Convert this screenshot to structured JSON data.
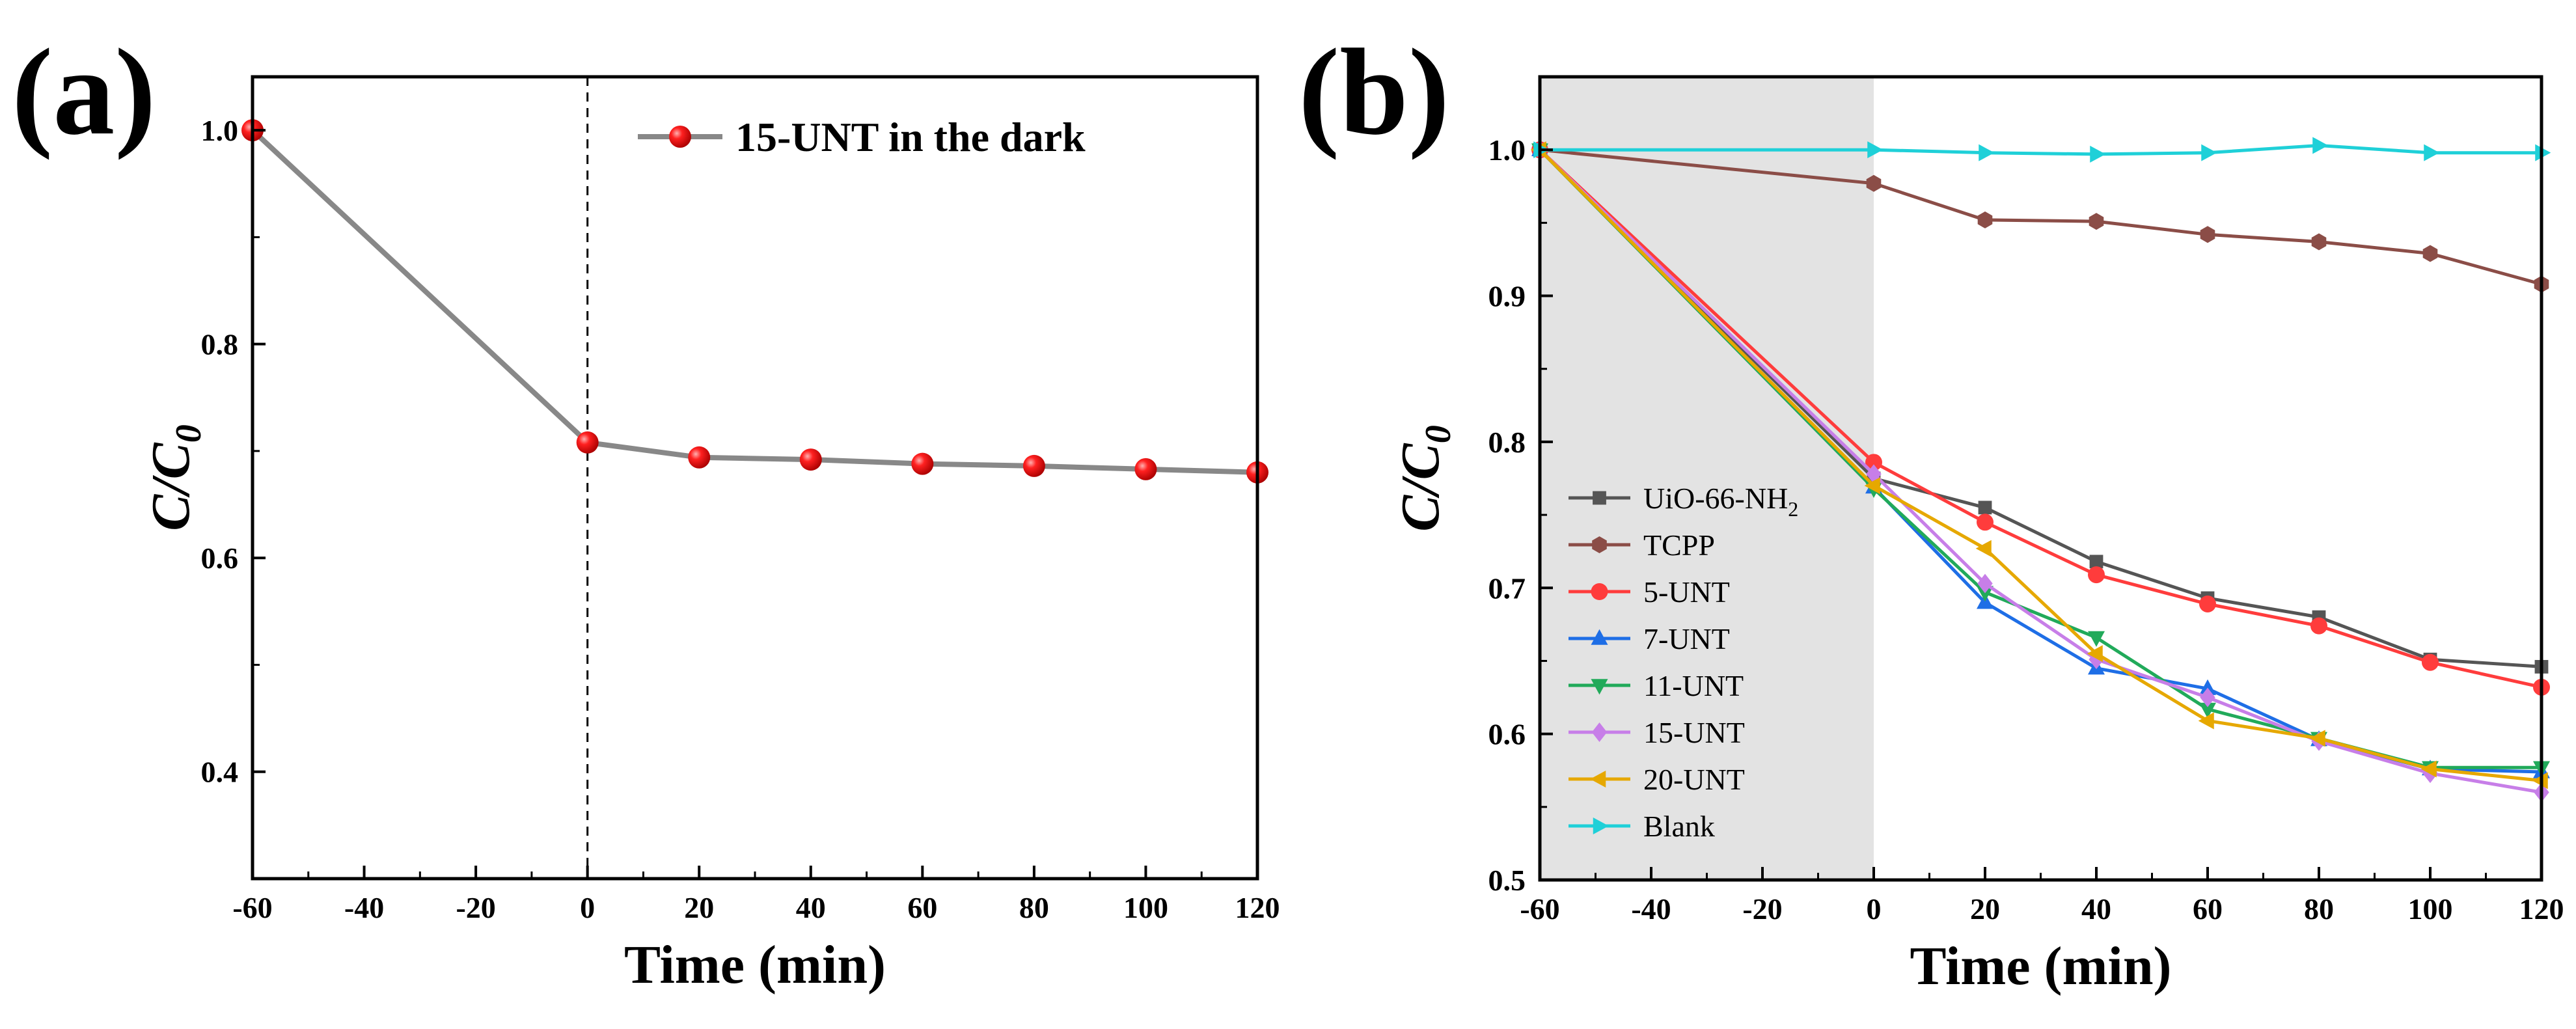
{
  "chart_data": [
    {
      "type": "line",
      "panel_label": "(a)",
      "xlabel": "Time (min)",
      "ylabel": "C/C",
      "ylabel_sub": "0",
      "xlim": [
        -60,
        120
      ],
      "ylim": [
        0.3,
        1.05
      ],
      "xticks": [
        -60,
        -40,
        -20,
        0,
        20,
        40,
        60,
        80,
        100,
        120
      ],
      "yticks": [
        0.4,
        0.6,
        0.8,
        1.0
      ],
      "ytick_labels": [
        "0.4",
        "0.6",
        "0.8",
        "1.0"
      ],
      "vline_x": 0,
      "legend_position": "top-right",
      "series": [
        {
          "name": "15-UNT in the dark",
          "color": "#888888",
          "marker": "sphere",
          "marker_color": "#ee1111",
          "x": [
            -60,
            0,
            20,
            40,
            60,
            80,
            100,
            120
          ],
          "values": [
            1.0,
            0.708,
            0.694,
            0.692,
            0.688,
            0.686,
            0.683,
            0.68
          ]
        }
      ]
    },
    {
      "type": "line",
      "panel_label": "(b)",
      "xlabel": "Time (min)",
      "ylabel": "C/C",
      "ylabel_sub": "0",
      "xlim": [
        -60,
        120
      ],
      "ylim": [
        0.5,
        1.05
      ],
      "xticks": [
        -60,
        -40,
        -20,
        0,
        20,
        40,
        60,
        80,
        100,
        120
      ],
      "yticks": [
        0.5,
        0.6,
        0.7,
        0.8,
        0.9,
        1.0
      ],
      "ytick_labels": [
        "0.5",
        "0.6",
        "0.7",
        "0.8",
        "0.9",
        "1.0"
      ],
      "dark_region": [
        -60,
        0
      ],
      "dark_region_color": "#e3e3e3",
      "legend_position": "bottom-left",
      "series": [
        {
          "name": "UiO-66-NH",
          "name_sub": "2",
          "color": "#555555",
          "marker": "square",
          "x": [
            -60,
            0,
            20,
            40,
            60,
            80,
            100,
            120
          ],
          "values": [
            1.0,
            0.775,
            0.755,
            0.718,
            0.693,
            0.68,
            0.651,
            0.646
          ]
        },
        {
          "name": "TCPP",
          "name_sub": "",
          "color": "#8b4d47",
          "marker": "hexagon",
          "x": [
            -60,
            0,
            20,
            40,
            60,
            80,
            100,
            120
          ],
          "values": [
            1.0,
            0.977,
            0.952,
            0.951,
            0.942,
            0.937,
            0.929,
            0.908
          ]
        },
        {
          "name": "5-UNT",
          "name_sub": "",
          "color": "#ff3c3c",
          "marker": "circle",
          "x": [
            -60,
            0,
            20,
            40,
            60,
            80,
            100,
            120
          ],
          "values": [
            1.0,
            0.786,
            0.745,
            0.709,
            0.689,
            0.674,
            0.649,
            0.632
          ]
        },
        {
          "name": "7-UNT",
          "name_sub": "",
          "color": "#1e6ee6",
          "marker": "triangle-up",
          "x": [
            -60,
            0,
            20,
            40,
            60,
            80,
            100,
            120
          ],
          "values": [
            1.0,
            0.769,
            0.69,
            0.645,
            0.631,
            0.596,
            0.576,
            0.574
          ]
        },
        {
          "name": "11-UNT",
          "name_sub": "",
          "color": "#21aa5a",
          "marker": "triangle-down",
          "x": [
            -60,
            0,
            20,
            40,
            60,
            80,
            100,
            120
          ],
          "values": [
            1.0,
            0.768,
            0.697,
            0.666,
            0.617,
            0.597,
            0.577,
            0.577
          ]
        },
        {
          "name": "15-UNT",
          "name_sub": "",
          "color": "#c77ee8",
          "marker": "diamond",
          "x": [
            -60,
            0,
            20,
            40,
            60,
            80,
            100,
            120
          ],
          "values": [
            1.0,
            0.778,
            0.703,
            0.651,
            0.625,
            0.595,
            0.573,
            0.56
          ]
        },
        {
          "name": "20-UNT",
          "name_sub": "",
          "color": "#e6a800",
          "marker": "triangle-left",
          "x": [
            -60,
            0,
            20,
            40,
            60,
            80,
            100,
            120
          ],
          "values": [
            1.0,
            0.77,
            0.727,
            0.655,
            0.609,
            0.597,
            0.576,
            0.568
          ]
        },
        {
          "name": "Blank",
          "name_sub": "",
          "color": "#1fd0d8",
          "marker": "triangle-right",
          "x": [
            -60,
            0,
            20,
            40,
            60,
            80,
            100,
            120
          ],
          "values": [
            1.0,
            1.0,
            0.998,
            0.997,
            0.998,
            1.003,
            0.998,
            0.998
          ]
        }
      ]
    }
  ]
}
